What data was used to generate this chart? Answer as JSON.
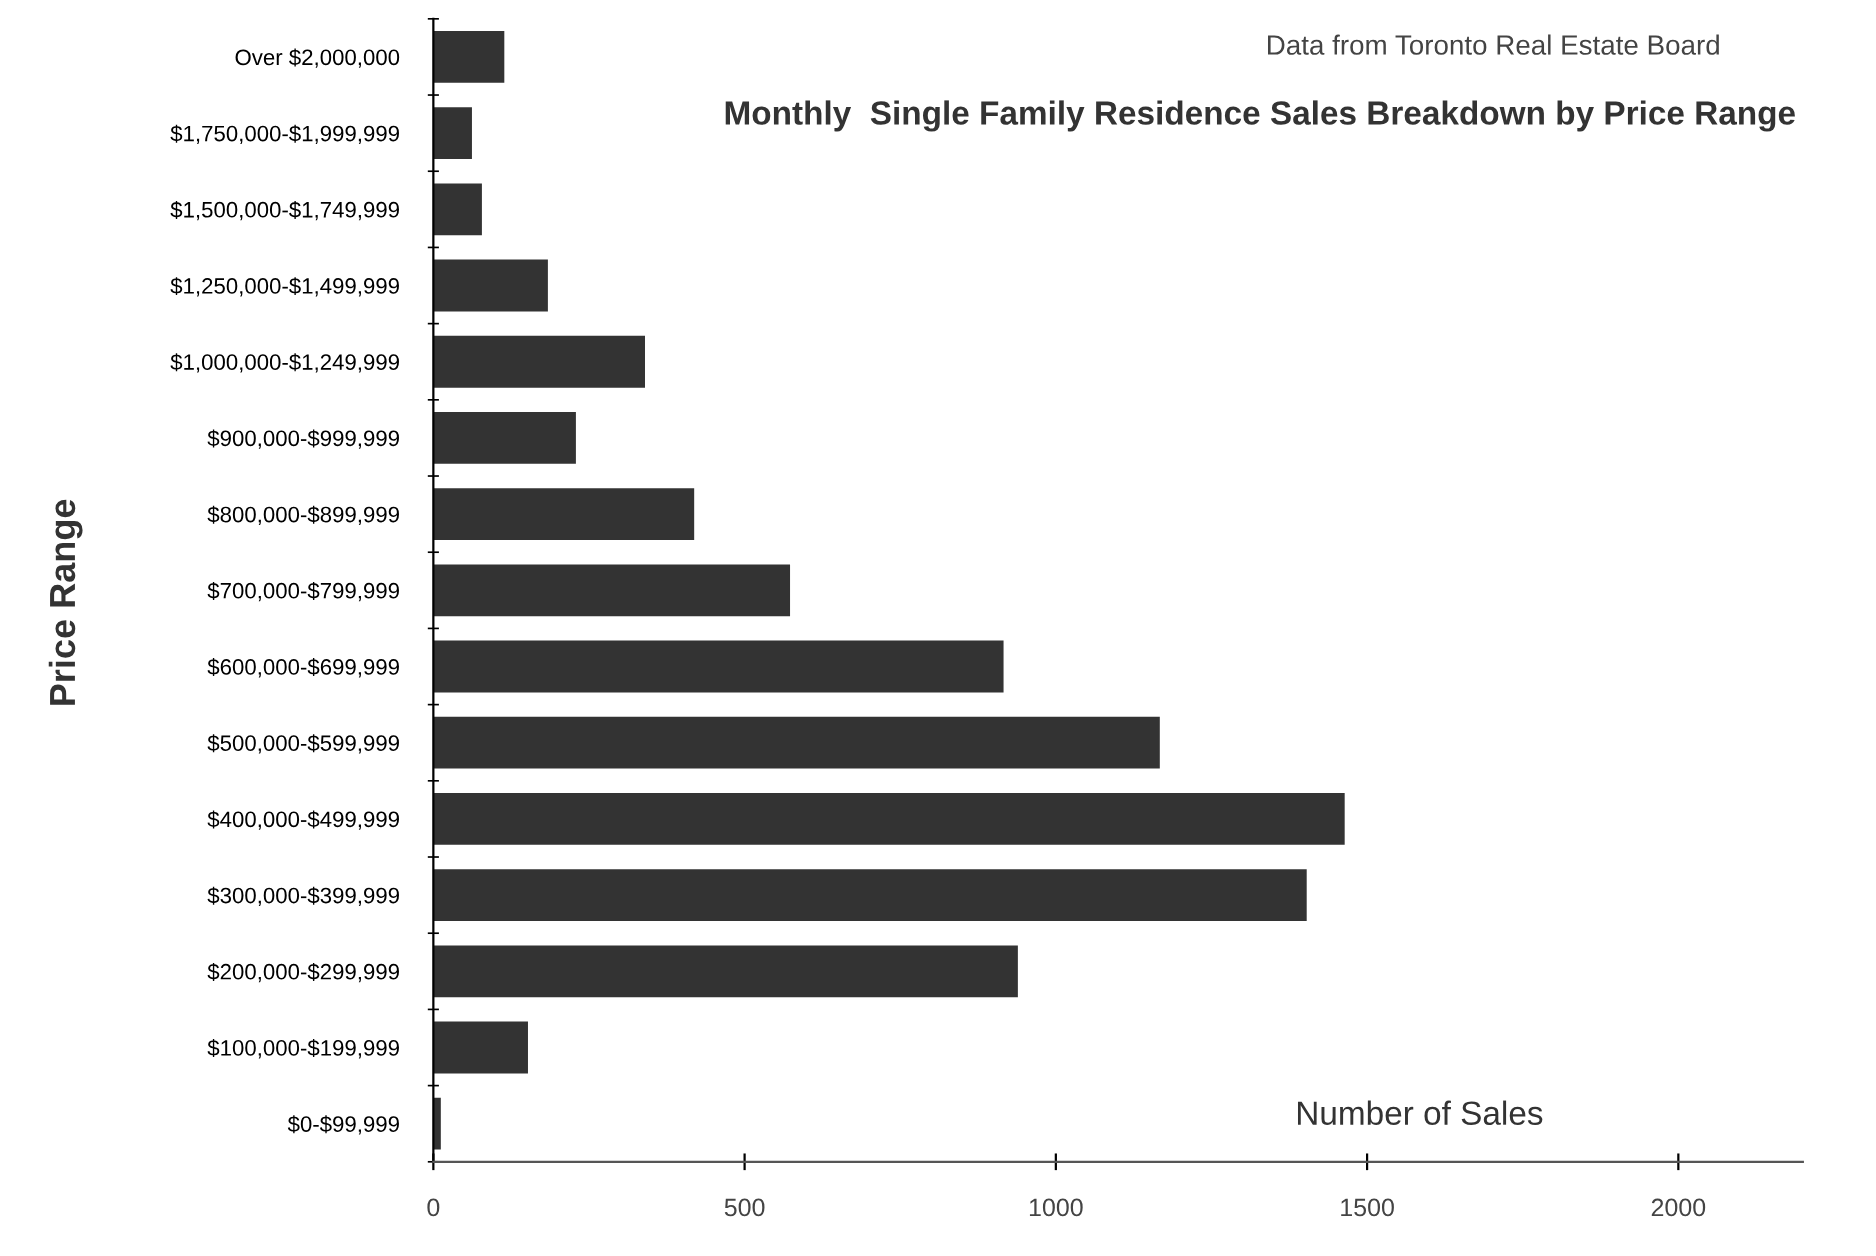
{
  "chart_data": {
    "type": "bar",
    "orientation": "horizontal",
    "title": "Monthly  Single Family Residence Sales Breakdown by Price Range",
    "xlabel": "Number of Sales",
    "ylabel": "Price Range",
    "annotations": [
      "Data from Toronto Real Estate Board"
    ],
    "categories": [
      "Over $2,000,000",
      "$1,750,000-$1,999,999",
      "$1,500,000-$1,749,999",
      "$1,250,000-$1,499,999",
      "$1,000,000-$1,249,999",
      "$900,000-$999,999",
      "$800,000-$899,999",
      "$700,000-$799,999",
      "$600,000-$699,999",
      "$500,000-$599,999",
      "$400,000-$499,999",
      "$300,000-$399,999",
      "$200,000-$299,999",
      "$100,000-$199,999",
      "$0-$99,999"
    ],
    "values": [
      114,
      62,
      78,
      184,
      340,
      229,
      419,
      573,
      916,
      1167,
      1464,
      1403,
      939,
      152,
      12
    ],
    "color": "#333333",
    "xlim": [
      0,
      2200
    ],
    "xticks": [
      0,
      500,
      1000,
      1500,
      2000
    ],
    "grid": false,
    "legend": false
  }
}
